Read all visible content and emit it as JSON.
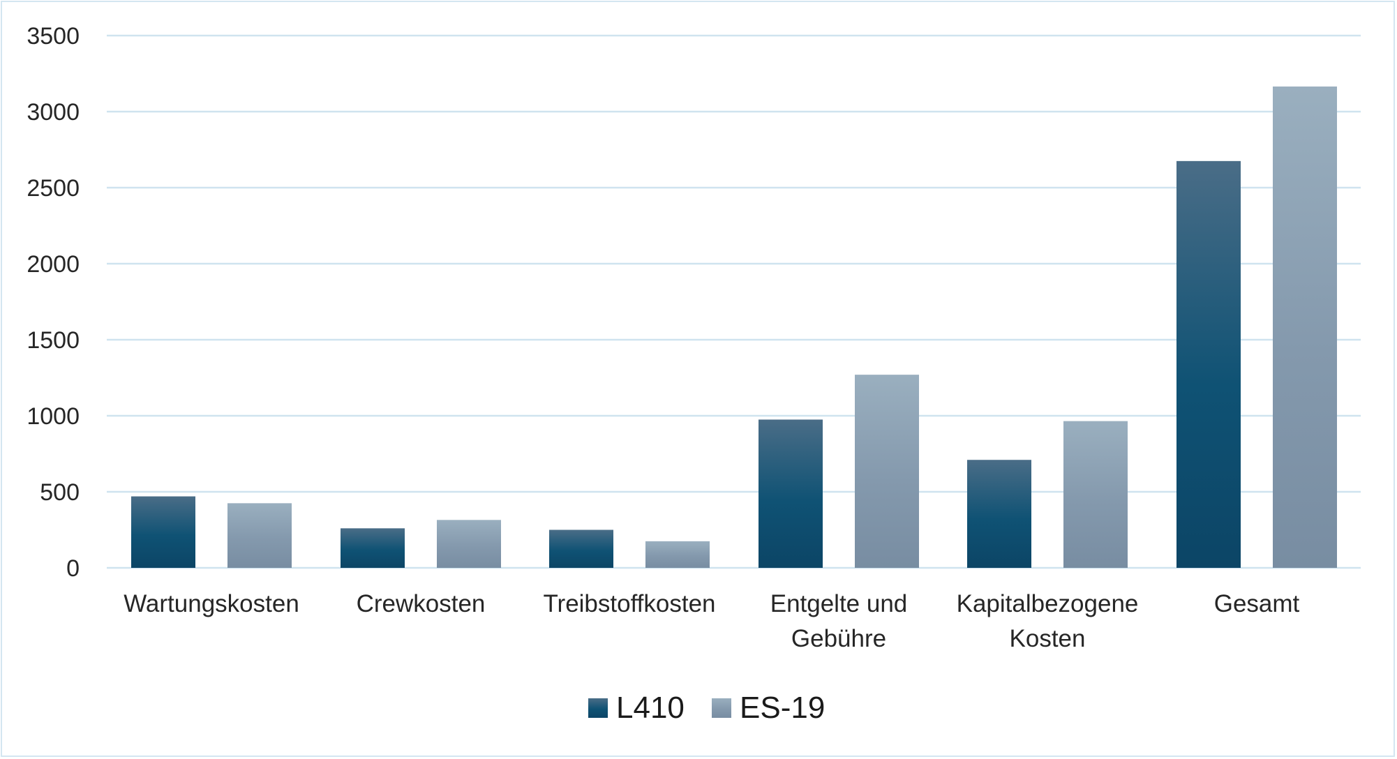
{
  "chart_data": {
    "type": "bar",
    "title": "",
    "xlabel": "",
    "ylabel": "",
    "categories": [
      [
        "Wartungskosten"
      ],
      [
        "Crewkosten"
      ],
      [
        "Treibstoffkosten"
      ],
      [
        "Entgelte und",
        "Gebühre"
      ],
      [
        "Kapitalbezogene",
        "Kosten"
      ],
      [
        "Gesamt"
      ]
    ],
    "series": [
      {
        "name": "L410",
        "values": [
          470,
          260,
          250,
          975,
          710,
          2675
        ],
        "color": "#0e4d6e"
      },
      {
        "name": "ES-19",
        "values": [
          425,
          315,
          175,
          1270,
          965,
          3165
        ],
        "color": "#8a9fb2"
      }
    ],
    "ylim": [
      0,
      3500
    ],
    "yticks": [
      0,
      500,
      1000,
      1500,
      2000,
      2500,
      3000,
      3500
    ],
    "grid": true,
    "legend_position": "bottom",
    "colors": {
      "gridline": "#cfe3ef",
      "frame": "#d4e6f1",
      "text": "#262626"
    }
  }
}
